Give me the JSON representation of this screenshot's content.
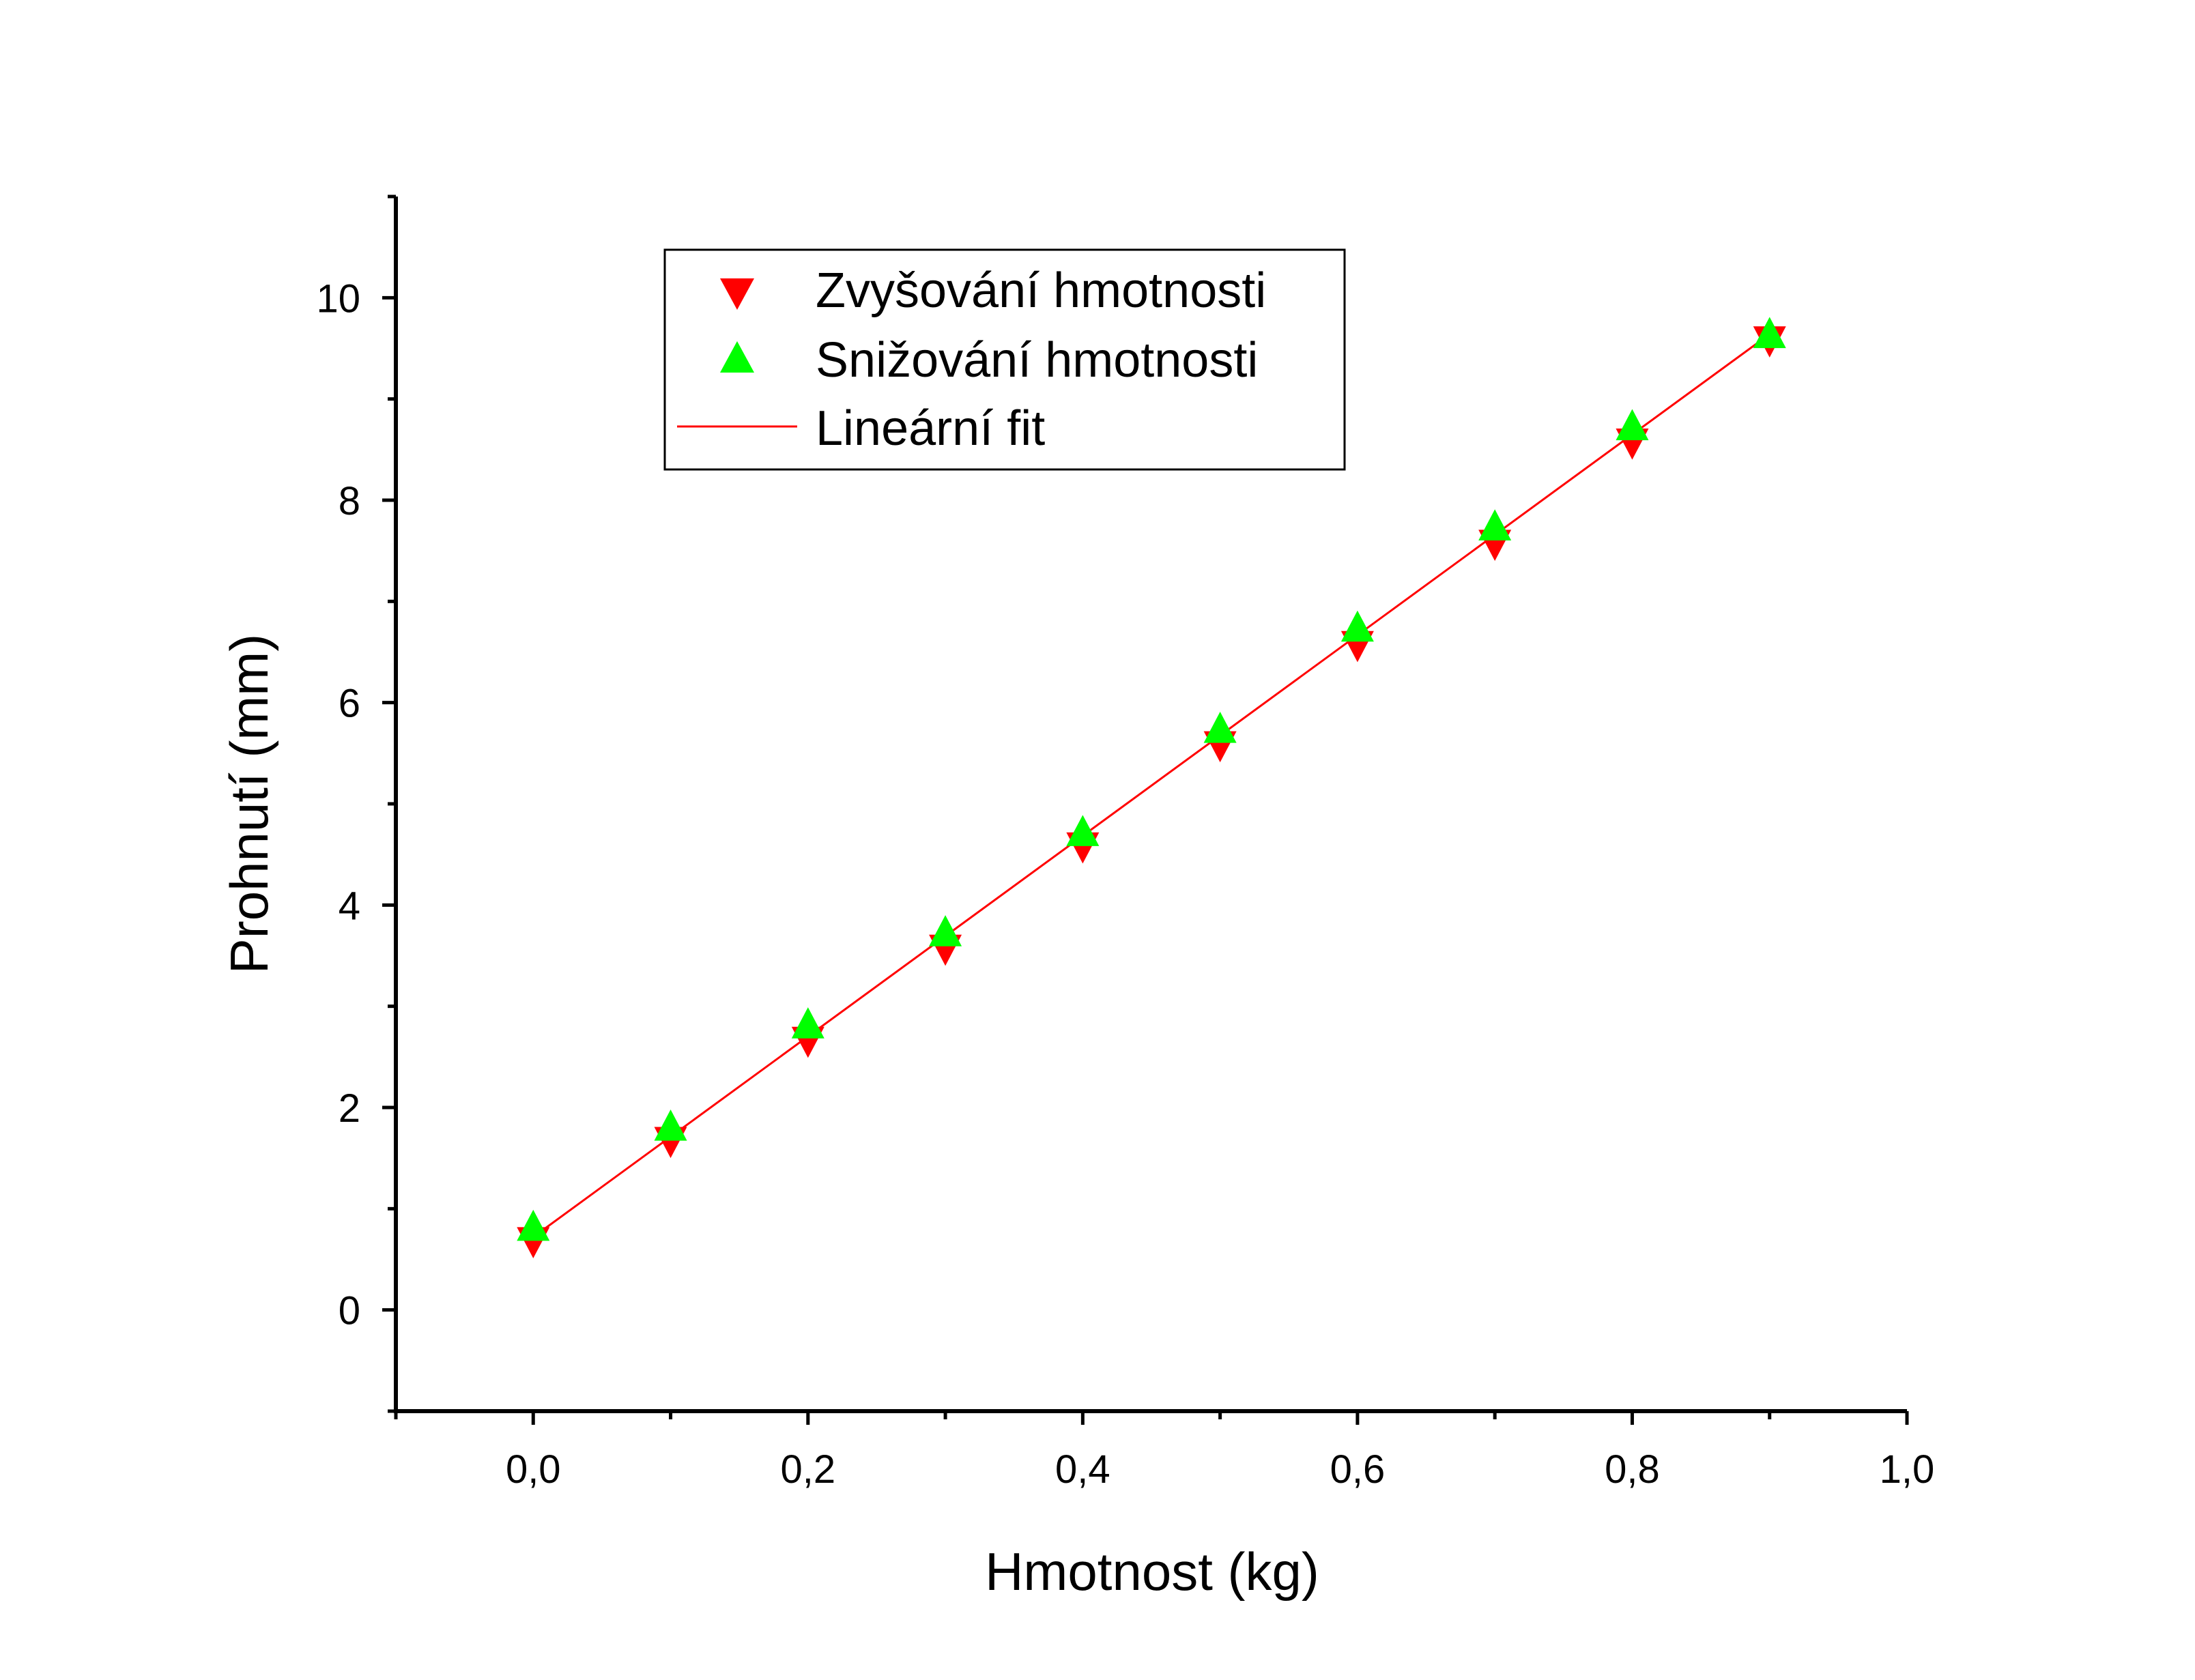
{
  "chart_data": {
    "type": "scatter",
    "xlabel": "Hmotnost (kg)",
    "ylabel": "Prohnutí (mm)",
    "xlim": [
      -0.1,
      1.0
    ],
    "ylim": [
      -1,
      11
    ],
    "x_ticks": [
      {
        "v": 0.0,
        "label": "0,0"
      },
      {
        "v": 0.2,
        "label": "0,2"
      },
      {
        "v": 0.4,
        "label": "0,4"
      },
      {
        "v": 0.6,
        "label": "0,6"
      },
      {
        "v": 0.8,
        "label": "0,8"
      },
      {
        "v": 1.0,
        "label": "1,0"
      }
    ],
    "x_minor_ticks": [
      -0.1,
      0.1,
      0.3,
      0.5,
      0.7,
      0.9
    ],
    "y_ticks": [
      {
        "v": 0,
        "label": "0"
      },
      {
        "v": 2,
        "label": "2"
      },
      {
        "v": 4,
        "label": "4"
      },
      {
        "v": 6,
        "label": "6"
      },
      {
        "v": 8,
        "label": "8"
      },
      {
        "v": 10,
        "label": "10"
      }
    ],
    "y_minor_ticks": [
      -1,
      1,
      3,
      5,
      7,
      9,
      11
    ],
    "grid": false,
    "legend_position": "top-center",
    "series": [
      {
        "name": "Zvyšování hmotnosti",
        "marker": "triangle-down",
        "color": "#ff0000",
        "x": [
          0.0,
          0.1,
          0.2,
          0.3,
          0.4,
          0.5,
          0.6,
          0.7,
          0.8,
          0.9
        ],
        "y": [
          0.68,
          1.67,
          2.66,
          3.57,
          4.58,
          5.58,
          6.57,
          7.57,
          8.57,
          9.58
        ]
      },
      {
        "name": "Snižování hmotnosti",
        "marker": "triangle-up",
        "color": "#00ff00",
        "x": [
          0.0,
          0.1,
          0.2,
          0.3,
          0.4,
          0.5,
          0.6,
          0.7,
          0.8,
          0.9
        ],
        "y": [
          0.82,
          1.81,
          2.82,
          3.73,
          4.72,
          5.74,
          6.74,
          7.74,
          8.73,
          9.64
        ]
      },
      {
        "name": "Lineární fit",
        "marker": "line",
        "color": "#ff0000",
        "x": [
          0.0,
          0.9
        ],
        "y": [
          0.72,
          9.64
        ]
      }
    ]
  }
}
